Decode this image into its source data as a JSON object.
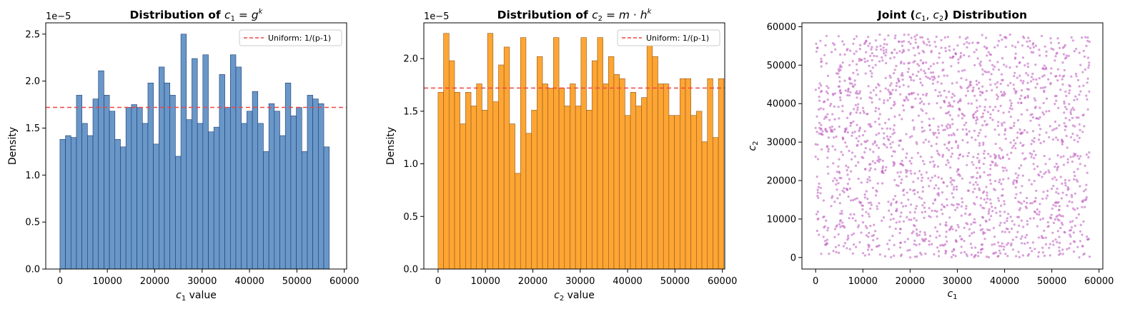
{
  "chart_data": [
    {
      "type": "bar",
      "title": "Distribution of c₁ = gᵏ",
      "xlabel": "c₁ value",
      "ylabel": "Density",
      "y_offset_label": "1e−5",
      "scale": 1e-05,
      "xlim": [
        -3000,
        60500
      ],
      "ylim": [
        0,
        2.62
      ],
      "xticks": [
        0,
        10000,
        20000,
        30000,
        40000,
        50000,
        60000
      ],
      "yticks": [
        0.0,
        0.5,
        1.0,
        1.5,
        2.0,
        2.5
      ],
      "bin_start": 0,
      "bin_width": 1160,
      "values": [
        1.38,
        1.42,
        1.4,
        1.85,
        1.55,
        1.42,
        1.81,
        2.11,
        1.85,
        1.68,
        1.38,
        1.3,
        1.72,
        1.75,
        1.72,
        1.55,
        1.98,
        1.33,
        2.15,
        1.98,
        1.85,
        1.2,
        2.5,
        1.59,
        2.24,
        1.55,
        2.28,
        1.46,
        1.51,
        2.07,
        1.72,
        2.28,
        2.15,
        1.55,
        1.68,
        1.89,
        1.55,
        1.25,
        1.76,
        1.68,
        1.42,
        1.98,
        1.63,
        1.72,
        1.25,
        1.85,
        1.81,
        1.76,
        1.3
      ],
      "bar_color": "#6997C8",
      "edge_color": "#1A3A75",
      "reference_line": {
        "value": 1.72,
        "label": "Uniform: 1/(p-1)",
        "color": "#F04545"
      },
      "legend": "top-right"
    },
    {
      "type": "bar",
      "title": "Distribution of c₂ = m · hᵏ",
      "xlabel": "c₂ value",
      "ylabel": "Density",
      "y_offset_label": "1e−5",
      "scale": 1e-05,
      "xlim": [
        -3000,
        60500
      ],
      "ylim": [
        0,
        2.34
      ],
      "xticks": [
        0,
        10000,
        20000,
        30000,
        40000,
        50000,
        60000
      ],
      "yticks": [
        0.0,
        0.5,
        1.0,
        1.5,
        2.0
      ],
      "bin_start": 0,
      "bin_width": 1160,
      "values": [
        1.68,
        2.24,
        1.98,
        1.68,
        1.38,
        1.68,
        1.55,
        1.76,
        1.51,
        2.24,
        1.59,
        1.94,
        2.11,
        1.38,
        0.91,
        2.2,
        1.29,
        1.51,
        2.02,
        1.76,
        1.72,
        2.2,
        1.72,
        1.55,
        1.76,
        1.55,
        2.2,
        1.51,
        1.98,
        2.2,
        1.76,
        2.02,
        1.85,
        1.81,
        1.46,
        1.68,
        1.55,
        1.63,
        2.15,
        2.02,
        1.76,
        1.76,
        1.46,
        1.46,
        1.81,
        1.81,
        1.46,
        1.5,
        1.21,
        1.81,
        1.25,
        1.81
      ],
      "bar_color": "#FFA533",
      "edge_color": "#8A5A20",
      "reference_line": {
        "value": 1.72,
        "label": "Uniform: 1/(p-1)",
        "color": "#F04545"
      },
      "legend": "top-right"
    },
    {
      "type": "scatter",
      "title": "Joint (c₁, c₂) Distribution",
      "xlabel": "c₁",
      "ylabel": "c₂",
      "xlim": [
        -2900,
        60800
      ],
      "ylim": [
        -3000,
        61000
      ],
      "xticks": [
        0,
        10000,
        20000,
        30000,
        40000,
        50000,
        60000
      ],
      "yticks": [
        0,
        10000,
        20000,
        30000,
        40000,
        50000,
        60000
      ],
      "point_color": "#BF61BF",
      "point_count": 2000,
      "value_range": [
        0,
        58000
      ],
      "rng_seed": 12345
    }
  ]
}
